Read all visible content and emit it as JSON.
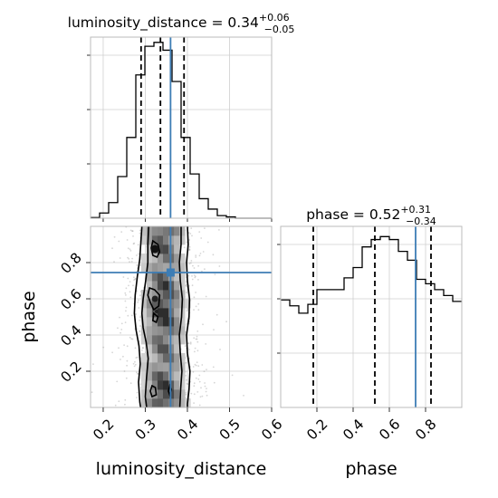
{
  "chart_data": {
    "type": "corner",
    "parameters": [
      "luminosity_distance",
      "phase"
    ],
    "truth": {
      "luminosity_distance": 0.36,
      "phase": 0.745
    },
    "truth_color": "#3d7db5",
    "panels": [
      {
        "id": "hist-luminosity_distance",
        "type": "histogram",
        "parameter": "luminosity_distance",
        "title": "luminosity_distance = 0.34",
        "title_sup": "+0.06",
        "title_sub": "−0.05",
        "xlim": [
          0.17,
          0.6
        ],
        "bin_edges": [
          0.17,
          0.1915,
          0.213,
          0.2345,
          0.256,
          0.2775,
          0.299,
          0.3205,
          0.342,
          0.3635,
          0.385,
          0.4065,
          0.428,
          0.4495,
          0.471,
          0.4925,
          0.514,
          0.5355,
          0.557,
          0.5785,
          0.6
        ],
        "values": [
          0.5,
          4,
          12,
          32,
          62,
          110,
          132,
          135,
          129,
          105,
          62,
          34,
          15,
          7,
          2,
          1,
          0,
          0,
          0,
          0
        ],
        "quantiles": [
          0.29,
          0.336,
          0.392
        ],
        "truth": 0.36
      },
      {
        "id": "hist-phase",
        "type": "histogram",
        "parameter": "phase",
        "title": "phase = 0.52",
        "title_sup": "+0.31",
        "title_sub": "−0.34",
        "xlim": [
          0.0,
          1.0
        ],
        "bin_edges": [
          0,
          0.05,
          0.1,
          0.15,
          0.2,
          0.25,
          0.3,
          0.35,
          0.4,
          0.45,
          0.5,
          0.55,
          0.6,
          0.65,
          0.7,
          0.75,
          0.8,
          0.85,
          0.9,
          0.95,
          1.0
        ],
        "values": [
          73,
          69,
          64,
          70,
          80,
          80,
          80,
          88,
          95,
          109,
          114,
          116,
          114,
          106,
          100,
          87,
          84,
          80,
          76,
          72
        ],
        "quantiles": [
          0.18,
          0.52,
          0.83
        ],
        "truth": 0.745
      },
      {
        "id": "scatter-phase-vs-luminosity_distance",
        "type": "density2d",
        "x": "luminosity_distance",
        "y": "phase",
        "xlim": [
          0.17,
          0.6
        ],
        "ylim": [
          0.0,
          1.0
        ],
        "xlabel": "luminosity_distance",
        "ylabel": "phase",
        "xticks": [
          "0.2",
          "0.3",
          "0.4",
          "0.5",
          "0.6"
        ],
        "yticks": [
          "0.2",
          "0.4",
          "0.6",
          "0.8"
        ],
        "truth": [
          0.36,
          0.745
        ]
      }
    ],
    "phase_hist_xlabel": "phase",
    "phase_hist_xticks": [
      "0.2",
      "0.4",
      "0.6",
      "0.8"
    ],
    "grid": true
  }
}
